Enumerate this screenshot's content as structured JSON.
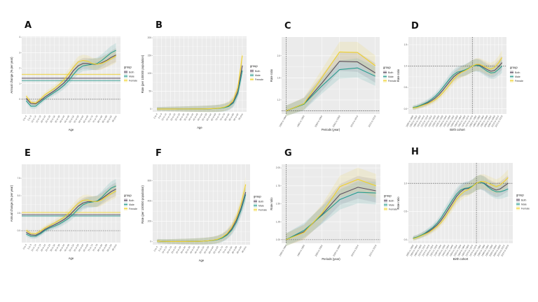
{
  "legend": {
    "title": "group",
    "entries": [
      "Both",
      "Male",
      "Female"
    ]
  },
  "colors": {
    "Both": "#5b4d61",
    "Male": "#2a9d8f",
    "Female": "#f0d22e",
    "panel_bg": "#ebebeb",
    "grid": "#ffffff"
  },
  "chart_data": [
    {
      "panel": "A",
      "type": "line",
      "xlabel": "Age",
      "ylabel": "Annual change (% per year)",
      "ylim": [
        -0.95,
        4.05
      ],
      "yticks": [
        "0",
        "1",
        "2",
        "3",
        "4"
      ],
      "ytick_values": [
        0,
        1,
        2,
        3,
        4
      ],
      "grid": true,
      "legend_position": "right",
      "ref_hlines": [
        0
      ],
      "ref_vline_category": null,
      "categories": [
        "0 to 4",
        "5 to 9",
        "10 to 14",
        "15 to 19",
        "20 to 24",
        "25 to 29",
        "30 to 34",
        "35 to 39",
        "40 to 44",
        "45 to 49",
        "50 to 54",
        "55 to 59",
        "60 to 64",
        "65 to 69",
        "70 to 74",
        "75 to 79",
        "80 to 84",
        "85 to 89",
        "90 to 94",
        "95 plus"
      ],
      "aapc": {
        "Both": 1.35,
        "Male": 1.2,
        "Female": 1.6
      },
      "series": [
        {
          "name": "Both",
          "values": [
            0.05,
            -0.28,
            -0.3,
            -0.1,
            0.15,
            0.35,
            0.55,
            0.8,
            1.05,
            1.4,
            1.85,
            2.15,
            2.3,
            2.3,
            2.25,
            2.25,
            2.35,
            2.5,
            2.7,
            2.85
          ]
        },
        {
          "name": "Male",
          "values": [
            -0.1,
            -0.45,
            -0.45,
            -0.2,
            0.05,
            0.25,
            0.45,
            0.65,
            0.9,
            1.2,
            1.6,
            1.95,
            2.15,
            2.2,
            2.25,
            2.3,
            2.5,
            2.75,
            3.0,
            3.15
          ]
        },
        {
          "name": "Female",
          "values": [
            0.2,
            -0.2,
            -0.25,
            0.0,
            0.3,
            0.5,
            0.7,
            0.95,
            1.25,
            1.65,
            2.05,
            2.4,
            2.5,
            2.45,
            2.3,
            2.25,
            2.3,
            2.45,
            2.6,
            2.8
          ]
        }
      ]
    },
    {
      "panel": "B",
      "type": "line",
      "xlabel": "Age",
      "ylabel": "Rate (per 100000 population)",
      "ylim": [
        -8,
        204
      ],
      "yticks": [
        "0",
        "50",
        "100",
        "150",
        "200"
      ],
      "ytick_values": [
        0,
        50,
        100,
        150,
        200
      ],
      "grid": true,
      "legend_position": "right",
      "ref_hlines": [],
      "ref_vline_category": null,
      "categories": [
        "0 to 4",
        "5 to 9",
        "10 to 14",
        "15 to 19",
        "20 to 24",
        "25 to 29",
        "30 to 34",
        "35 to 39",
        "40 to 44",
        "45 to 49",
        "50 to 54",
        "55 to 59",
        "60 to 64",
        "65 to 69",
        "70 to 74",
        "75 to 79",
        "80 to 84",
        "85 to 89",
        "90 to 94",
        "95 plus"
      ],
      "series": [
        {
          "name": "Both",
          "values": [
            0.1,
            0.05,
            0.05,
            0.05,
            0.05,
            0.1,
            0.1,
            0.1,
            0.15,
            0.2,
            0.3,
            0.5,
            0.8,
            1.3,
            2.3,
            4.5,
            9,
            20,
            50,
            122
          ]
        },
        {
          "name": "Male",
          "values": [
            0.1,
            0.05,
            0.05,
            0.05,
            0.05,
            0.1,
            0.1,
            0.1,
            0.15,
            0.2,
            0.3,
            0.45,
            0.7,
            1.1,
            2,
            3.8,
            7.5,
            17,
            43,
            108
          ]
        },
        {
          "name": "Female",
          "values": [
            0.1,
            0.05,
            0.05,
            0.05,
            0.05,
            0.1,
            0.1,
            0.1,
            0.15,
            0.2,
            0.3,
            0.55,
            0.9,
            1.5,
            2.7,
            5.3,
            11,
            25,
            60,
            150
          ]
        }
      ]
    },
    {
      "panel": "C",
      "type": "line",
      "xlabel": "Periods (year)",
      "ylabel": "Rate ratio",
      "ylim": [
        0.945,
        2.34
      ],
      "yticks": [
        "1.2",
        "1.6",
        "2.0"
      ],
      "ytick_values": [
        1.2,
        1.6,
        2.0
      ],
      "grid": true,
      "legend_position": "right",
      "ref_hlines": [
        1.0
      ],
      "ref_vline_category": 0,
      "categories": [
        "1990 to 1994",
        "1995 to 1999",
        "2000 to 2004",
        "2005 to 2009",
        "2010 to 2014",
        "2015 to 2019"
      ],
      "series": [
        {
          "name": "Both",
          "values": [
            1.0,
            1.13,
            1.5,
            1.9,
            1.89,
            1.69
          ]
        },
        {
          "name": "Male",
          "values": [
            1.0,
            1.12,
            1.45,
            1.75,
            1.78,
            1.63
          ]
        },
        {
          "name": "Female",
          "values": [
            1.0,
            1.13,
            1.6,
            2.07,
            2.06,
            1.82
          ]
        }
      ]
    },
    {
      "panel": "D",
      "type": "line",
      "xlabel": "Birth cohort",
      "ylabel": "Rate ratio",
      "ylim": [
        -0.12,
        1.68
      ],
      "yticks": [
        "0.0",
        "0.5",
        "1.0",
        "1.5"
      ],
      "ytick_values": [
        0,
        0.5,
        1.0,
        1.5
      ],
      "grid": true,
      "legend_position": "right",
      "ref_hlines": [
        1.0
      ],
      "ref_vline_category": 16,
      "categories": [
        "1895 to 1899",
        "1900 to 1904",
        "1905 to 1909",
        "1910 to 1914",
        "1915 to 1919",
        "1920 to 1924",
        "1925 to 1929",
        "1930 to 1934",
        "1935 to 1939",
        "1940 to 1944",
        "1945 to 1949",
        "1950 to 1954",
        "1955 to 1959",
        "1960 to 1964",
        "1965 to 1969",
        "1970 to 1974",
        "1975 to 1979",
        "1980 to 1984",
        "1985 to 1989",
        "1990 to 1994",
        "1995 to 1999",
        "2000 to 2004",
        "2005 to 2009",
        "2010 to 2014",
        "2015 to 2019"
      ],
      "series": [
        {
          "name": "Both",
          "values": [
            0.02,
            0.04,
            0.07,
            0.1,
            0.14,
            0.19,
            0.25,
            0.33,
            0.43,
            0.54,
            0.65,
            0.75,
            0.82,
            0.87,
            0.9,
            0.95,
            1.0,
            1.03,
            1.02,
            0.97,
            0.92,
            0.88,
            0.9,
            0.98,
            1.08
          ]
        },
        {
          "name": "Male",
          "values": [
            0.03,
            0.05,
            0.08,
            0.12,
            0.16,
            0.22,
            0.29,
            0.38,
            0.49,
            0.6,
            0.71,
            0.8,
            0.86,
            0.88,
            0.91,
            0.95,
            1.0,
            1.02,
            1.0,
            0.94,
            0.88,
            0.84,
            0.85,
            0.92,
            1.0
          ]
        },
        {
          "name": "Female",
          "values": [
            0.02,
            0.03,
            0.06,
            0.09,
            0.12,
            0.16,
            0.21,
            0.28,
            0.37,
            0.47,
            0.58,
            0.69,
            0.78,
            0.85,
            0.89,
            0.94,
            1.0,
            1.04,
            1.04,
            1.0,
            0.96,
            0.93,
            0.97,
            1.07,
            1.2
          ]
        }
      ]
    },
    {
      "panel": "E",
      "type": "line",
      "xlabel": "Age",
      "ylabel": "Annual change (% per year)",
      "ylim": [
        -1.7,
        9.5
      ],
      "yticks": [
        "0.0",
        "2.5",
        "5.0",
        "7.5"
      ],
      "ytick_values": [
        0,
        2.5,
        5.0,
        7.5
      ],
      "grid": true,
      "legend_position": "right",
      "ref_hlines": [
        0
      ],
      "ref_vline_category": null,
      "categories": [
        "0 to 4",
        "5 to 9",
        "10 to 14",
        "15 to 19",
        "20 to 24",
        "25 to 29",
        "30 to 34",
        "35 to 39",
        "40 to 44",
        "45 to 49",
        "50 to 54",
        "55 to 59",
        "60 to 64",
        "65 to 69",
        "70 to 74",
        "75 to 79",
        "80 to 84",
        "85 to 89",
        "90 to 94",
        "95 plus"
      ],
      "aapc": {
        "Both": 2.3,
        "Male": 2.1,
        "Female": 2.6
      },
      "series": [
        {
          "name": "Both",
          "values": [
            -0.25,
            -0.6,
            -0.65,
            -0.3,
            0.2,
            0.55,
            0.85,
            1.2,
            1.6,
            2.1,
            2.8,
            3.5,
            3.95,
            4.15,
            4.15,
            4.2,
            4.6,
            5.1,
            5.6,
            5.95
          ]
        },
        {
          "name": "Male",
          "values": [
            -0.5,
            -0.8,
            -0.8,
            -0.45,
            0.05,
            0.4,
            0.65,
            0.95,
            1.35,
            1.8,
            2.4,
            3.1,
            3.7,
            4.0,
            4.1,
            4.25,
            4.8,
            5.5,
            6.1,
            6.4
          ]
        },
        {
          "name": "Female",
          "values": [
            0.05,
            -0.4,
            -0.45,
            -0.05,
            0.4,
            0.75,
            1.1,
            1.5,
            1.9,
            2.5,
            3.25,
            3.9,
            4.35,
            4.4,
            4.2,
            4.15,
            4.4,
            4.9,
            5.3,
            5.7
          ]
        }
      ]
    },
    {
      "panel": "F",
      "type": "line",
      "xlabel": "Age",
      "ylabel": "Rate (per 100000 population)",
      "ylim": [
        -30,
        763
      ],
      "yticks": [
        "0",
        "200",
        "400",
        "600"
      ],
      "ytick_values": [
        0,
        200,
        400,
        600
      ],
      "grid": true,
      "legend_position": "right",
      "ref_hlines": [],
      "ref_vline_category": null,
      "categories": [
        "0 to 4",
        "5 to 9",
        "10 to 14",
        "15 to 19",
        "20 to 24",
        "25 to 29",
        "30 to 34",
        "35 to 39",
        "40 to 44",
        "45 to 49",
        "50 to 54",
        "55 to 59",
        "60 to 64",
        "65 to 69",
        "70 to 74",
        "75 to 79",
        "80 to 84",
        "85 to 89",
        "90 to 94",
        "95 plus"
      ],
      "series": [
        {
          "name": "Both",
          "values": [
            6,
            3,
            2,
            1.5,
            1.5,
            1.5,
            1.5,
            2,
            2.5,
            3.5,
            5,
            8,
            13,
            22,
            40,
            72,
            125,
            210,
            330,
            488
          ]
        },
        {
          "name": "Male",
          "values": [
            6,
            3,
            2,
            1.5,
            1.5,
            1.5,
            1.5,
            2,
            2.5,
            3.5,
            5,
            7.5,
            12,
            20,
            36,
            65,
            112,
            190,
            310,
            465
          ]
        },
        {
          "name": "Female",
          "values": [
            6,
            3,
            2,
            1.5,
            1.5,
            1.5,
            1.5,
            2,
            2.5,
            3.5,
            5,
            8.5,
            14,
            24,
            45,
            80,
            140,
            235,
            370,
            565
          ]
        }
      ]
    },
    {
      "panel": "G",
      "type": "line",
      "xlabel": "Periods (year)",
      "ylabel": "Rate ratio",
      "ylim": [
        0.95,
        2.05
      ],
      "yticks": [
        "1.00",
        "1.25",
        "1.50",
        "1.75",
        "2.00"
      ],
      "ytick_values": [
        1.0,
        1.25,
        1.5,
        1.75,
        2.0
      ],
      "grid": true,
      "legend_position": "right",
      "ref_hlines": [
        1.0
      ],
      "ref_vline_category": 0,
      "categories": [
        "1990 to 1994",
        "1995 to 1999",
        "2000 to 2004",
        "2005 to 2009",
        "2010 to 2014",
        "2015 to 2019"
      ],
      "series": [
        {
          "name": "Both",
          "values": [
            1.0,
            1.11,
            1.35,
            1.63,
            1.73,
            1.68
          ]
        },
        {
          "name": "Male",
          "values": [
            1.0,
            1.13,
            1.34,
            1.56,
            1.66,
            1.65
          ]
        },
        {
          "name": "Female",
          "values": [
            1.0,
            1.1,
            1.37,
            1.74,
            1.84,
            1.75
          ]
        }
      ]
    },
    {
      "panel": "H",
      "type": "line",
      "xlabel": "Birth cohort",
      "ylabel": "Rate ratio",
      "ylim": [
        -0.06,
        1.36
      ],
      "yticks": [
        "0.0",
        "0.5",
        "1.0"
      ],
      "ytick_values": [
        0,
        0.5,
        1.0
      ],
      "grid": true,
      "legend_position": "right",
      "ref_hlines": [
        1.0
      ],
      "ref_vline_category": 16,
      "categories": [
        "1895 to 1899",
        "1900 to 1904",
        "1905 to 1909",
        "1910 to 1914",
        "1915 to 1919",
        "1920 to 1924",
        "1925 to 1929",
        "1930 to 1934",
        "1935 to 1939",
        "1940 to 1944",
        "1945 to 1949",
        "1950 to 1954",
        "1955 to 1959",
        "1960 to 1964",
        "1965 to 1969",
        "1970 to 1974",
        "1975 to 1979",
        "1980 to 1984",
        "1985 to 1989",
        "1990 to 1994",
        "1995 to 1999",
        "2000 to 2004",
        "2005 to 2009",
        "2010 to 2014",
        "2015 to 2019"
      ],
      "series": [
        {
          "name": "Both",
          "values": [
            0.03,
            0.05,
            0.08,
            0.11,
            0.15,
            0.2,
            0.26,
            0.34,
            0.44,
            0.55,
            0.66,
            0.77,
            0.85,
            0.9,
            0.91,
            0.95,
            1.0,
            1.02,
            1.0,
            0.95,
            0.91,
            0.88,
            0.9,
            0.95,
            1.0
          ]
        },
        {
          "name": "Male",
          "values": [
            0.03,
            0.05,
            0.08,
            0.12,
            0.17,
            0.22,
            0.29,
            0.38,
            0.49,
            0.6,
            0.71,
            0.81,
            0.88,
            0.91,
            0.92,
            0.95,
            1.0,
            1.02,
            0.99,
            0.93,
            0.88,
            0.85,
            0.85,
            0.87,
            0.9
          ]
        },
        {
          "name": "Female",
          "values": [
            0.02,
            0.04,
            0.07,
            0.1,
            0.13,
            0.18,
            0.23,
            0.3,
            0.39,
            0.5,
            0.61,
            0.72,
            0.8,
            0.86,
            0.89,
            0.94,
            1.0,
            1.03,
            1.03,
            1.0,
            0.97,
            0.94,
            0.97,
            1.03,
            1.1
          ]
        }
      ]
    }
  ]
}
